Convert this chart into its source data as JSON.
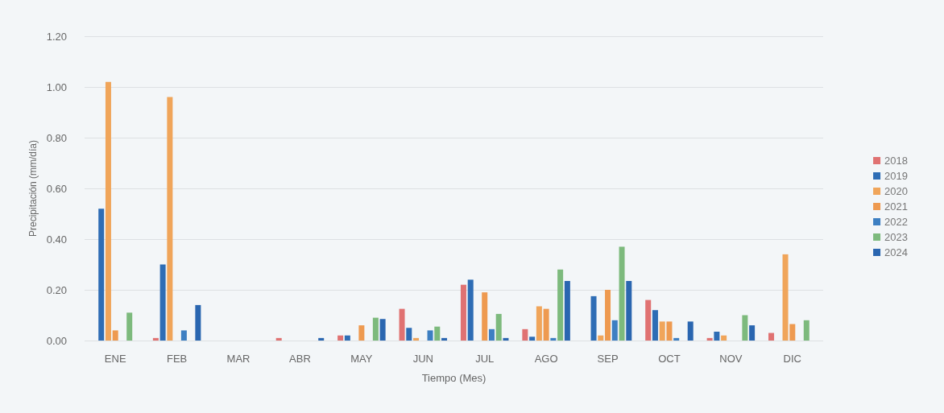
{
  "chart_data": {
    "type": "bar",
    "xlabel": "Tiempo (Mes)",
    "ylabel": "Precipitación (mm/día)",
    "categories": [
      "ENE",
      "FEB",
      "MAR",
      "ABR",
      "MAY",
      "JUN",
      "JUL",
      "AGO",
      "SEP",
      "OCT",
      "NOV",
      "DIC"
    ],
    "series": [
      {
        "name": "2018",
        "color": "#e07272",
        "values": [
          0,
          0.01,
          0,
          0.01,
          0.02,
          0.125,
          0.22,
          0.045,
          0,
          0.16,
          0.01,
          0.03
        ]
      },
      {
        "name": "2019",
        "color": "#2e6db5",
        "values": [
          0.52,
          0.3,
          0,
          0,
          0.02,
          0.05,
          0.24,
          0.015,
          0.175,
          0.12,
          0.035,
          0
        ]
      },
      {
        "name": "2020",
        "color": "#f0a55a",
        "values": [
          1.02,
          0.96,
          0,
          0,
          0,
          0.01,
          0,
          0.135,
          0.02,
          0.075,
          0.02,
          0.34
        ]
      },
      {
        "name": "2021",
        "color": "#ee9a50",
        "values": [
          0.04,
          0,
          0,
          0,
          0.06,
          0,
          0.19,
          0.125,
          0.2,
          0.075,
          0,
          0.065
        ]
      },
      {
        "name": "2022",
        "color": "#3d7fc2",
        "values": [
          0,
          0.04,
          0,
          0,
          0,
          0.04,
          0.045,
          0.01,
          0.08,
          0.01,
          0,
          0
        ]
      },
      {
        "name": "2023",
        "color": "#7dba7d",
        "values": [
          0.11,
          0,
          0,
          0,
          0.09,
          0.055,
          0.105,
          0.28,
          0.37,
          0,
          0.1,
          0.08
        ]
      },
      {
        "name": "2024",
        "color": "#2a66b0",
        "values": [
          0,
          0.14,
          0,
          0.01,
          0.085,
          0.01,
          0.01,
          0.235,
          0.235,
          0.075,
          0.06,
          0
        ]
      }
    ],
    "ylim": [
      0,
      1.2
    ],
    "yticks": [
      {
        "value": 0,
        "label": "0.00"
      },
      {
        "value": 0.2,
        "label": "0.20"
      },
      {
        "value": 0.4,
        "label": "0.40"
      },
      {
        "value": 0.6,
        "label": "0.60"
      },
      {
        "value": 0.8,
        "label": "0.80"
      },
      {
        "value": 1,
        "label": "1.00"
      },
      {
        "value": 1.2,
        "label": "1.20"
      }
    ],
    "grid": "y",
    "legend": "right"
  }
}
